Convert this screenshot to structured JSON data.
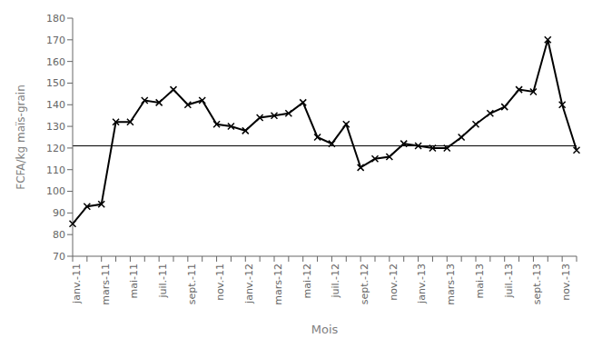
{
  "chart_data": {
    "type": "line",
    "xlabel": "Mois",
    "ylabel": "FCFA/kg maïs-grain",
    "categories": [
      "janv.-11",
      null,
      "mars-11",
      null,
      "mai-11",
      null,
      "juil.-11",
      null,
      "sept.-11",
      null,
      "nov.-11",
      null,
      "janv.-12",
      null,
      "mars-12",
      null,
      "mai-12",
      null,
      "juil.-12",
      null,
      "sept.-12",
      null,
      "nov.-12",
      null,
      "janv.-13",
      null,
      "mars-13",
      null,
      "mai-13",
      null,
      "juil.-13",
      null,
      "sept.-13",
      null,
      "nov.-13",
      null
    ],
    "values": [
      85,
      93,
      94,
      132,
      132,
      142,
      141,
      147,
      140,
      142,
      131,
      130,
      128,
      134,
      135,
      136,
      141,
      125,
      122,
      131,
      111,
      115,
      116,
      122,
      121,
      120,
      120,
      125,
      131,
      136,
      139,
      147,
      146,
      170,
      140,
      119
    ],
    "color": "#000000",
    "marker": "x",
    "reference_lines": [
      {
        "y": 121,
        "color": "#000000"
      }
    ],
    "ylim": [
      70,
      180
    ],
    "yticks": [
      70,
      80,
      90,
      100,
      110,
      120,
      130,
      140,
      150,
      160,
      170,
      180
    ],
    "grid": false
  }
}
